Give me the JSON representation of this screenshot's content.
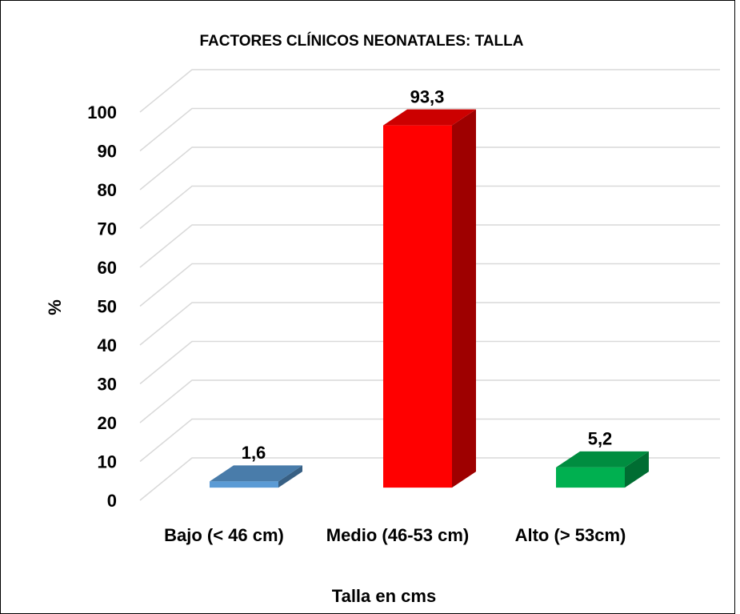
{
  "chart_data": {
    "type": "bar3d",
    "title": "FACTORES CLÍNICOS NEONATALES: TALLA",
    "categories": [
      "Bajo (< 46 cm)",
      "Medio (46-53 cm)",
      "Alto (> 53cm)"
    ],
    "values": [
      1.6,
      93.3,
      5.2
    ],
    "value_labels": [
      "1,6",
      "93,3",
      "5,2"
    ],
    "colors": [
      "#5b9bd5",
      "#ff0000",
      "#00b050"
    ],
    "ylabel": "%",
    "xlabel": "Talla en cms",
    "ylim": [
      0,
      100
    ],
    "yticks": [
      0,
      10,
      20,
      30,
      40,
      50,
      60,
      70,
      80,
      90,
      100
    ],
    "grid": true
  }
}
